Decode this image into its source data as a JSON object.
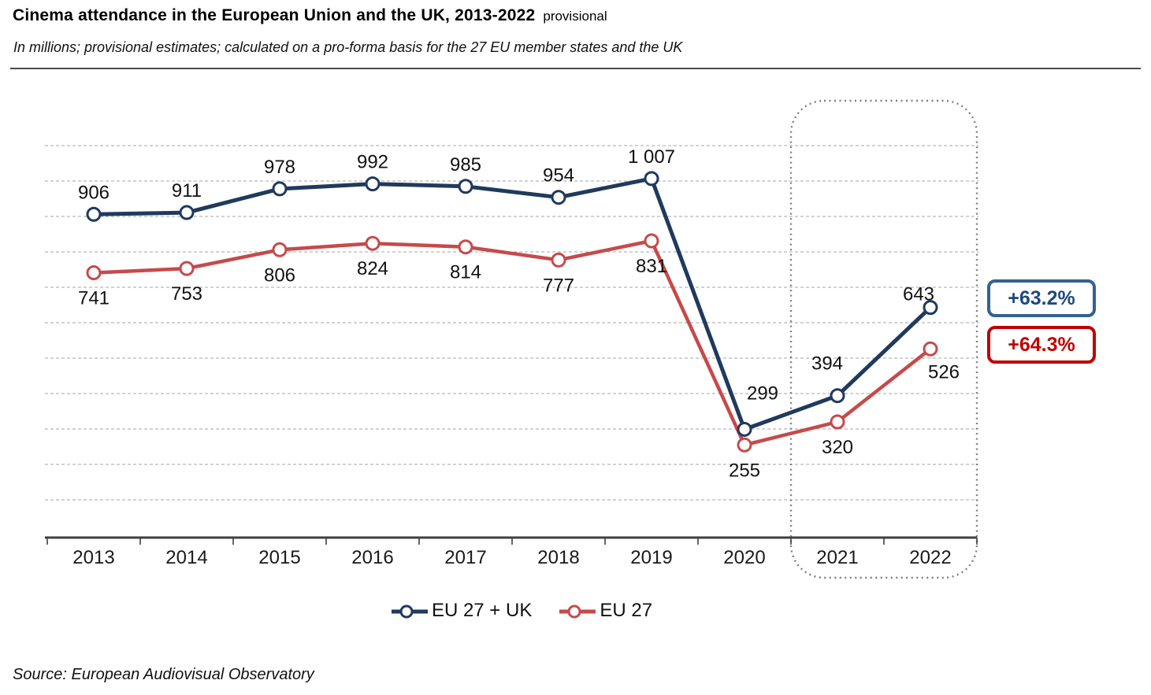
{
  "header": {
    "title": "Cinema attendance in the European Union and the UK, 2013-2022",
    "title_suffix": "provisional",
    "subtitle": "In millions; provisional estimates; calculated on a pro-forma basis for the 27 EU member states and the UK"
  },
  "chart_data": {
    "type": "line",
    "categories": [
      "2013",
      "2014",
      "2015",
      "2016",
      "2017",
      "2018",
      "2019",
      "2020",
      "2021",
      "2022"
    ],
    "series": [
      {
        "name": "EU 27 + UK",
        "color": "#1F3A5C",
        "values": [
          906,
          911,
          978,
          992,
          985,
          954,
          1007,
          299,
          394,
          643
        ],
        "labels": [
          "906",
          "911",
          "978",
          "992",
          "985",
          "954",
          "1 007",
          "299",
          "394",
          "643"
        ],
        "label_position": "above"
      },
      {
        "name": "EU 27",
        "color": "#C64A4B",
        "values": [
          741,
          753,
          806,
          824,
          814,
          777,
          831,
          255,
          320,
          526
        ],
        "labels": [
          "741",
          "753",
          "806",
          "824",
          "814",
          "777",
          "831",
          "255",
          "320",
          "526"
        ],
        "label_position": "below"
      }
    ],
    "title": "Cinema attendance in the European Union and the UK, 2013-2022",
    "xlabel": "",
    "ylabel": "",
    "ylim": [
      0,
      1100
    ],
    "gridlines": {
      "show": true,
      "min": 100,
      "max": 1100,
      "interval": 100,
      "style": "dashed"
    },
    "y_axis_labels_visible": false,
    "marker_style": "open-circle",
    "highlight_box": {
      "categories": [
        "2021",
        "2022"
      ],
      "style": "dotted-rounded",
      "color": "#7f7f7f"
    },
    "annotations": [
      {
        "text": "+63.2%",
        "series": "EU 27 + UK",
        "border_color": "#35618F",
        "text_color": "#1F497D"
      },
      {
        "text": "+64.3%",
        "series": "EU 27",
        "border_color": "#C00000",
        "text_color": "#C00000"
      }
    ],
    "legend": {
      "position": "bottom",
      "items": [
        "EU 27 + UK",
        "EU 27"
      ]
    }
  },
  "footer": {
    "source": "Source: European Audiovisual Observatory"
  }
}
